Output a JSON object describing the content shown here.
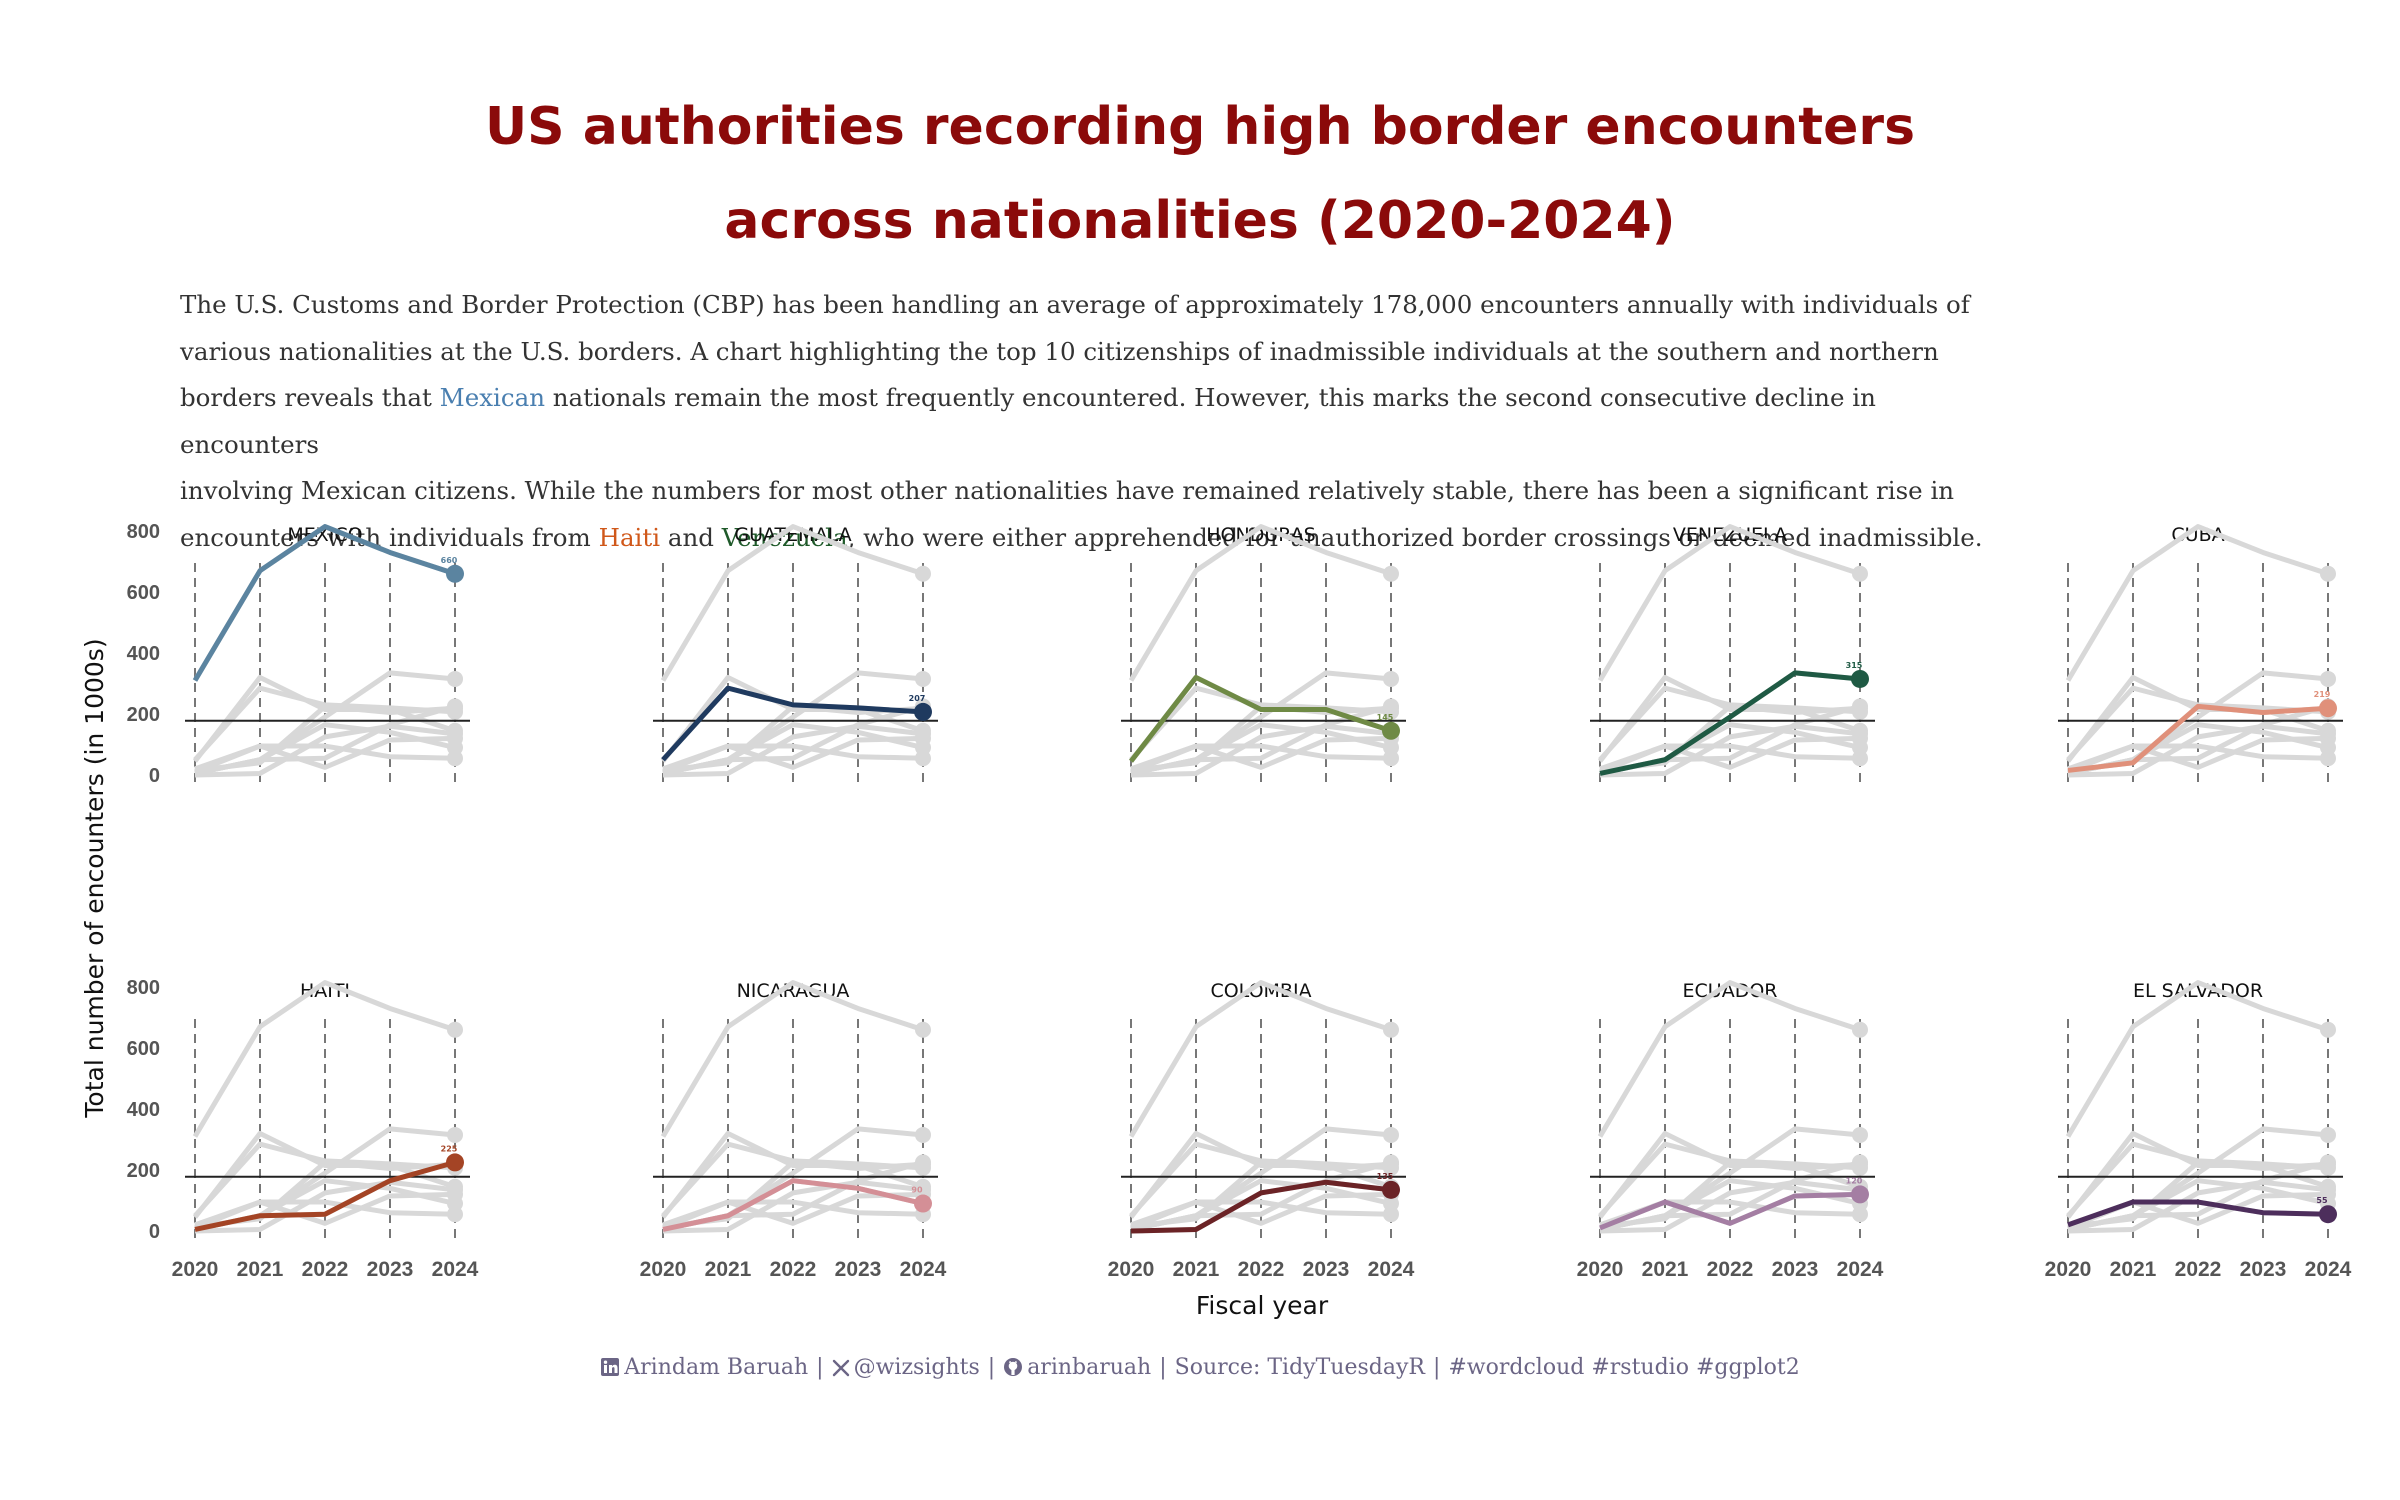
{
  "title_line1": "US authorities recording high border encounters",
  "title_line2": "across nationalities (2020-2024)",
  "subtitle": {
    "line1": "The U.S. Customs and Border Protection (CBP) has been handling an average of approximately 178,000 encounters annually with individuals of",
    "line2": "various nationalities at the U.S. borders. A chart highlighting the top 10 citizenships of inadmissible individuals at the southern and northern",
    "line3_a": "borders reveals that ",
    "line3_mexican": "Mexican",
    "line3_b": " nationals remain the most frequently encountered. However, this marks the second consecutive decline in encounters",
    "line4": "involving Mexican citizens. While the numbers for most other nationalities have remained relatively stable, there has been a significant rise in",
    "line5_a": "encounters with individuals from ",
    "line5_haiti": "Haiti",
    "line5_and": " and ",
    "line5_venezuela": "Venezuela",
    "line5_b": ", who were either apprehended for unauthorized border crossings or deemed inadmissible.",
    "colors": {
      "mexican": "#4a7fb0",
      "haiti": "#d0581a",
      "venezuela": "#1f5a2a"
    }
  },
  "caption": {
    "author": "Arindam Baruah",
    "twitter": "@wizsights",
    "github": "arinbaruah",
    "source": "Source: TidyTuesdayR",
    "tags": "#wordcloud #rstudio #ggplot2"
  },
  "chart_data": {
    "type": "line",
    "x": [
      2020,
      2021,
      2022,
      2023,
      2024
    ],
    "ylim": [
      0,
      820
    ],
    "yticks": [
      0,
      200,
      400,
      600,
      800
    ],
    "hline": 178,
    "ylabel": "Total number of encounters (in 1000s)",
    "xlabel": "Fiscal year",
    "grid": "vertical dashed at each year",
    "series": [
      {
        "name": "MEXICO",
        "values": [
          310,
          670,
          815,
          730,
          660
        ],
        "color": "#5b84a0",
        "end_label": "660"
      },
      {
        "name": "GUATEMALA",
        "values": [
          50,
          285,
          230,
          220,
          207
        ],
        "color": "#1f3a5f",
        "end_label": "207"
      },
      {
        "name": "HONDURAS",
        "values": [
          45,
          320,
          215,
          215,
          145
        ],
        "color": "#6f8a45",
        "end_label": "145"
      },
      {
        "name": "VENEZUELA",
        "values": [
          5,
          50,
          190,
          335,
          315
        ],
        "color": "#1f5a44",
        "end_label": "315"
      },
      {
        "name": "CUBA",
        "values": [
          15,
          40,
          225,
          205,
          219
        ],
        "color": "#e0907a",
        "end_label": "219"
      },
      {
        "name": "HAITI",
        "values": [
          5,
          50,
          55,
          165,
          225
        ],
        "color": "#a44425",
        "end_label": "225"
      },
      {
        "name": "NICARAGUA",
        "values": [
          5,
          50,
          165,
          140,
          90
        ],
        "color": "#d48f96",
        "end_label": "90"
      },
      {
        "name": "COLOMBIA",
        "values": [
          0,
          5,
          125,
          160,
          135
        ],
        "color": "#6b2326",
        "end_label": "135"
      },
      {
        "name": "ECUADOR",
        "values": [
          10,
          95,
          25,
          115,
          120
        ],
        "color": "#a47ea3",
        "end_label": "120"
      },
      {
        "name": "EL SALVADOR",
        "values": [
          20,
          95,
          95,
          60,
          55
        ],
        "color": "#4d2e5c",
        "end_label": "55"
      }
    ]
  }
}
